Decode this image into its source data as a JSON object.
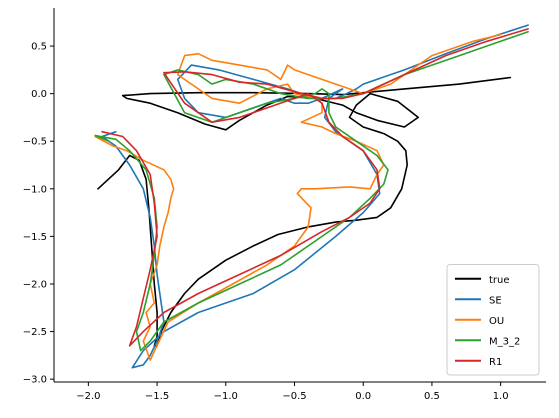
{
  "chart_data": {
    "type": "line",
    "title": "",
    "xlabel": "",
    "ylabel": "",
    "xlim": [
      -2.25,
      1.33
    ],
    "ylim": [
      -3.03,
      0.9
    ],
    "xticks": [
      -2.0,
      -1.5,
      -1.0,
      -0.5,
      0.0,
      0.5,
      1.0
    ],
    "xtick_labels": [
      "−2.0",
      "−1.5",
      "−1.0",
      "−0.5",
      "0.0",
      "0.5",
      "1.0"
    ],
    "yticks": [
      0.5,
      0.0,
      -0.5,
      -1.0,
      -1.5,
      -2.0,
      -2.5,
      -3.0
    ],
    "ytick_labels": [
      "0.5",
      "0.0",
      "−0.5",
      "−1.0",
      "−1.5",
      "−2.0",
      "−2.5",
      "−3.0"
    ],
    "grid": false,
    "legend_position": "bottom-right",
    "series": [
      {
        "name": "true",
        "color": "#000000",
        "x": [
          -1.93,
          -1.78,
          -1.7,
          -1.63,
          -1.58,
          -1.56,
          -1.54,
          -1.52,
          -1.5,
          -1.5,
          -1.52,
          -1.5,
          -1.47,
          -1.4,
          -1.3,
          -1.2,
          -1.0,
          -0.8,
          -0.62,
          -0.4,
          -0.2,
          -0.05,
          0.1,
          0.2,
          0.28,
          0.32,
          0.31,
          0.25,
          0.15,
          0.0,
          -0.1,
          -0.05,
          0.05,
          0.25,
          0.4,
          0.3,
          0.1,
          -0.05,
          -0.15,
          -0.35,
          -0.55,
          -0.7,
          -0.9,
          -1.0,
          -1.15,
          -1.35,
          -1.55,
          -1.72,
          -1.75,
          -1.55,
          -1.2,
          -0.8,
          -0.4,
          -0.15,
          0.0,
          0.3,
          0.7,
          1.07
        ],
        "y": [
          -1.0,
          -0.8,
          -0.65,
          -0.7,
          -0.9,
          -1.2,
          -1.6,
          -2.0,
          -2.3,
          -2.55,
          -2.65,
          -2.65,
          -2.5,
          -2.3,
          -2.1,
          -1.95,
          -1.75,
          -1.6,
          -1.48,
          -1.4,
          -1.35,
          -1.33,
          -1.3,
          -1.2,
          -1.0,
          -0.75,
          -0.6,
          -0.5,
          -0.42,
          -0.35,
          -0.25,
          -0.12,
          0.0,
          -0.08,
          -0.25,
          -0.35,
          -0.28,
          -0.2,
          -0.12,
          -0.05,
          -0.03,
          -0.12,
          -0.28,
          -0.38,
          -0.32,
          -0.2,
          -0.1,
          -0.05,
          -0.02,
          0.0,
          0.01,
          0.01,
          0.0,
          -0.01,
          0.01,
          0.05,
          0.1,
          0.17
        ]
      },
      {
        "name": "SE",
        "color": "#1f77b4",
        "x": [
          -1.8,
          -1.9,
          -1.8,
          -1.7,
          -1.6,
          -1.55,
          -1.52,
          -1.5,
          -1.48,
          -1.45,
          -1.5,
          -1.55,
          -1.6,
          -1.68,
          -1.6,
          -1.45,
          -1.2,
          -0.8,
          -0.5,
          -0.2,
          0.0,
          0.12,
          0.1,
          0.0,
          -0.2,
          -0.28,
          -0.25,
          -0.15,
          -0.3,
          -0.4,
          -0.5,
          -0.6,
          -0.8,
          -1.0,
          -1.2,
          -1.3,
          -1.35,
          -1.25,
          -1.05,
          -0.8,
          -0.55,
          -0.35,
          -0.2,
          -0.12,
          -0.05,
          0.0,
          0.3,
          0.6,
          0.9,
          1.2
        ],
        "y": [
          -0.4,
          -0.45,
          -0.55,
          -0.75,
          -1.0,
          -1.3,
          -1.6,
          -1.9,
          -2.1,
          -2.4,
          -2.6,
          -2.75,
          -2.85,
          -2.88,
          -2.7,
          -2.5,
          -2.3,
          -2.1,
          -1.85,
          -1.5,
          -1.25,
          -1.05,
          -0.85,
          -0.6,
          -0.4,
          -0.25,
          -0.05,
          0.05,
          -0.05,
          -0.1,
          -0.1,
          -0.05,
          -0.15,
          -0.25,
          -0.2,
          -0.05,
          0.15,
          0.3,
          0.25,
          0.15,
          0.05,
          -0.05,
          -0.05,
          0.0,
          0.05,
          0.1,
          0.25,
          0.42,
          0.58,
          0.72
        ]
      },
      {
        "name": "OU",
        "color": "#ff7f0e",
        "x": [
          -1.95,
          -1.82,
          -1.72,
          -1.6,
          -1.45,
          -1.4,
          -1.38,
          -1.4,
          -1.42,
          -1.45,
          -1.48,
          -1.5,
          -1.55,
          -1.52,
          -1.58,
          -1.55,
          -1.6,
          -1.55,
          -1.42,
          -1.2,
          -0.95,
          -0.7,
          -0.5,
          -0.4,
          -0.38,
          -0.48,
          -0.45,
          -0.35,
          -0.1,
          0.05,
          0.1,
          0.15,
          0.1,
          -0.05,
          -0.2,
          -0.3,
          -0.45,
          -0.3,
          -0.3,
          -0.35,
          -0.5,
          -0.55,
          -0.7,
          -0.9,
          -1.1,
          -1.25,
          -1.35,
          -1.3,
          -1.2,
          -1.1,
          -0.9,
          -0.7,
          -0.6,
          -0.55,
          -0.5,
          -0.4,
          -0.2,
          0.0,
          0.2,
          0.5,
          0.8,
          1.0
        ],
        "y": [
          -0.45,
          -0.55,
          -0.6,
          -0.7,
          -0.8,
          -0.9,
          -1.0,
          -1.1,
          -1.25,
          -1.4,
          -1.6,
          -1.8,
          -2.0,
          -2.2,
          -2.3,
          -2.45,
          -2.6,
          -2.8,
          -2.4,
          -2.2,
          -2.0,
          -1.8,
          -1.6,
          -1.4,
          -1.2,
          -1.05,
          -1.0,
          -1.0,
          -0.98,
          -1.0,
          -0.85,
          -0.75,
          -0.6,
          -0.5,
          -0.42,
          -0.35,
          -0.3,
          -0.2,
          -0.1,
          -0.05,
          0.0,
          0.1,
          0.05,
          -0.1,
          -0.05,
          0.1,
          0.2,
          0.4,
          0.42,
          0.35,
          0.3,
          0.25,
          0.15,
          0.3,
          0.25,
          0.2,
          0.1,
          0.0,
          0.1,
          0.4,
          0.55,
          0.62
        ]
      },
      {
        "name": "M_3_2",
        "color": "#2ca02c",
        "x": [
          -1.85,
          -1.95,
          -1.8,
          -1.7,
          -1.58,
          -1.52,
          -1.5,
          -1.52,
          -1.55,
          -1.6,
          -1.65,
          -1.62,
          -1.55,
          -1.45,
          -1.2,
          -0.9,
          -0.6,
          -0.3,
          -0.1,
          0.05,
          0.15,
          0.18,
          0.1,
          -0.05,
          -0.2,
          -0.25,
          -0.25,
          -0.3,
          -0.35,
          -0.5,
          -0.7,
          -0.9,
          -1.1,
          -1.3,
          -1.45,
          -1.35,
          -1.2,
          -1.1,
          -1.0,
          -0.8,
          -0.6,
          -0.4,
          -0.2,
          0.0,
          0.3,
          0.7,
          1.0,
          1.2
        ],
        "y": [
          -0.5,
          -0.44,
          -0.48,
          -0.6,
          -0.8,
          -1.1,
          -1.4,
          -1.7,
          -2.0,
          -2.3,
          -2.5,
          -2.7,
          -2.6,
          -2.4,
          -2.2,
          -2.0,
          -1.8,
          -1.5,
          -1.3,
          -1.1,
          -0.95,
          -0.8,
          -0.65,
          -0.5,
          -0.35,
          -0.2,
          0.0,
          0.05,
          0.0,
          -0.05,
          -0.1,
          -0.2,
          -0.3,
          -0.2,
          0.2,
          0.25,
          0.2,
          0.1,
          0.15,
          0.1,
          0.0,
          -0.05,
          -0.05,
          0.0,
          0.2,
          0.4,
          0.55,
          0.65
        ]
      },
      {
        "name": "R1",
        "color": "#d62728",
        "x": [
          -1.9,
          -1.75,
          -1.65,
          -1.55,
          -1.52,
          -1.5,
          -1.55,
          -1.6,
          -1.65,
          -1.7,
          -1.6,
          -1.45,
          -1.2,
          -0.9,
          -0.6,
          -0.3,
          -0.1,
          0.05,
          0.12,
          0.1,
          0.0,
          -0.15,
          -0.25,
          -0.3,
          -0.4,
          -0.5,
          -0.7,
          -0.9,
          -1.1,
          -1.3,
          -1.45,
          -1.3,
          -1.1,
          -0.9,
          -0.7,
          -0.5,
          -0.3,
          -0.15,
          0.0,
          0.3,
          0.6,
          0.9,
          1.2
        ],
        "y": [
          -0.4,
          -0.45,
          -0.6,
          -0.85,
          -1.15,
          -1.5,
          -1.85,
          -2.15,
          -2.45,
          -2.65,
          -2.5,
          -2.3,
          -2.1,
          -1.9,
          -1.7,
          -1.45,
          -1.3,
          -1.15,
          -1.0,
          -0.8,
          -0.6,
          -0.45,
          -0.3,
          -0.1,
          0.0,
          -0.05,
          -0.15,
          -0.25,
          -0.3,
          -0.1,
          0.22,
          0.23,
          0.2,
          0.12,
          0.1,
          0.02,
          -0.05,
          -0.05,
          0.0,
          0.2,
          0.4,
          0.55,
          0.68
        ]
      }
    ]
  }
}
